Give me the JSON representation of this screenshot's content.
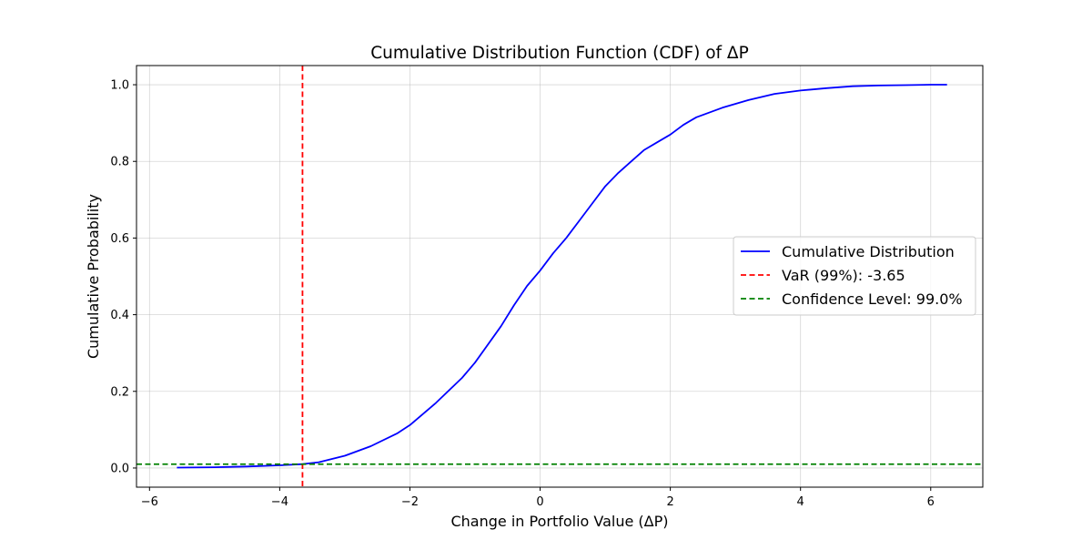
{
  "chart_data": {
    "type": "line",
    "title": "Cumulative Distribution Function (CDF) of ΔP",
    "xlabel": "Change in Portfolio Value (ΔP)",
    "ylabel": "Cumulative Probability",
    "xlim": [
      -6.2,
      6.8
    ],
    "ylim": [
      -0.05,
      1.05
    ],
    "x_ticks": [
      -6,
      -4,
      -2,
      0,
      2,
      4,
      6
    ],
    "y_ticks": [
      0.0,
      0.2,
      0.4,
      0.6,
      0.8,
      1.0
    ],
    "x_tick_labels": [
      "−6",
      "−4",
      "−2",
      "0",
      "2",
      "4",
      "6"
    ],
    "y_tick_labels": [
      "0.0",
      "0.2",
      "0.4",
      "0.6",
      "0.8",
      "1.0"
    ],
    "grid": true,
    "legend_position": "center-right",
    "series": [
      {
        "name": "Cumulative Distribution",
        "color": "#0000ff",
        "style": "solid",
        "x": [
          -5.58,
          -5.0,
          -4.5,
          -4.0,
          -3.65,
          -3.4,
          -3.0,
          -2.6,
          -2.2,
          -2.0,
          -1.6,
          -1.2,
          -1.0,
          -0.6,
          -0.4,
          -0.2,
          0.0,
          0.2,
          0.4,
          0.6,
          0.8,
          1.0,
          1.2,
          1.4,
          1.6,
          1.8,
          2.0,
          2.2,
          2.4,
          2.8,
          3.2,
          3.6,
          4.0,
          4.4,
          4.8,
          5.2,
          5.6,
          6.0,
          6.25
        ],
        "y": [
          0.001,
          0.002,
          0.004,
          0.007,
          0.01,
          0.015,
          0.032,
          0.057,
          0.09,
          0.112,
          0.17,
          0.235,
          0.275,
          0.37,
          0.425,
          0.475,
          0.515,
          0.56,
          0.6,
          0.645,
          0.69,
          0.735,
          0.77,
          0.8,
          0.83,
          0.85,
          0.87,
          0.895,
          0.915,
          0.94,
          0.96,
          0.976,
          0.985,
          0.991,
          0.996,
          0.998,
          0.999,
          1.0,
          1.0
        ]
      },
      {
        "name": "VaR (99%): -3.65",
        "color": "#ff0000",
        "style": "dashed",
        "orientation": "vertical",
        "value": -3.65
      },
      {
        "name": "Confidence Level: 99.0%",
        "color": "#008000",
        "style": "dashed",
        "orientation": "horizontal",
        "value": 0.01
      }
    ]
  }
}
